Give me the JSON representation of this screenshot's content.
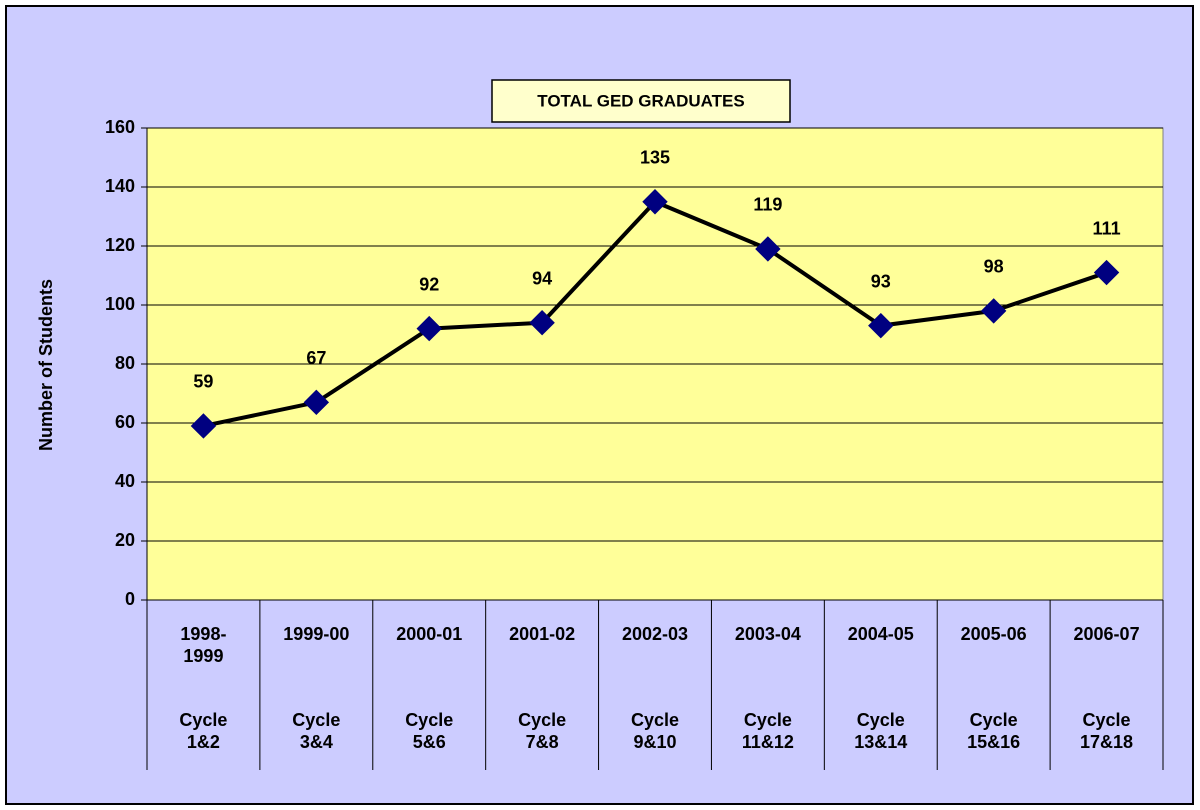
{
  "chart_data": {
    "type": "line",
    "title": "TOTAL GED GRADUATES",
    "ylabel": "Number of Students",
    "categories": [
      "1998-1999",
      "1999-00",
      "2000-01",
      "2001-02",
      "2002-03",
      "2003-04",
      "2004-05",
      "2005-06",
      "2006-07"
    ],
    "cycles": [
      "Cycle 1&2",
      "Cycle 3&4",
      "Cycle 5&6",
      "Cycle 7&8",
      "Cycle 9&10",
      "Cycle 11&12",
      "Cycle 13&14",
      "Cycle 15&16",
      "Cycle 17&18"
    ],
    "values": [
      59,
      67,
      92,
      94,
      135,
      119,
      93,
      98,
      111
    ],
    "color": "#000080",
    "line_color": "#000000",
    "ylim": [
      0,
      160
    ],
    "yticks": [
      0,
      20,
      40,
      60,
      80,
      100,
      120,
      140,
      160
    ],
    "grid": true
  }
}
